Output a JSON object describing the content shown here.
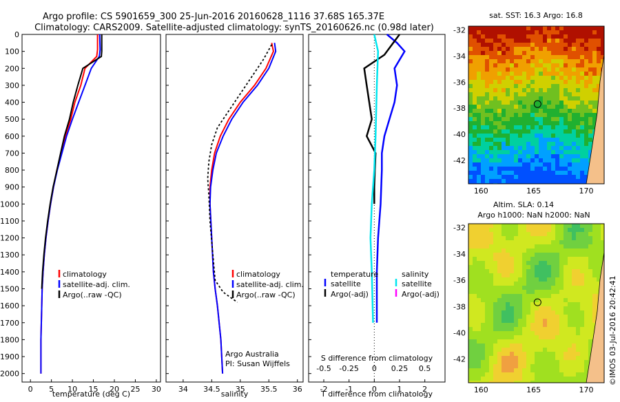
{
  "header": {
    "line1": "Argo profile: CS 5901659_300 25-Jun-2016 20160628_1116 37.68S 165.37E",
    "line2": "Climatology: CARS2009. Satellite-adjusted climatology: synTS_20160626.nc (0.98d later)"
  },
  "credit": "©IMOS 03-Jul-2016 20:42:41",
  "colors": {
    "climatology": "#ff0000",
    "satellite": "#0000ff",
    "argo": "#000000",
    "sal_satellite": "#00e5ee",
    "sal_argo": "#ff00ff"
  },
  "chart_data": [
    {
      "type": "line",
      "name": "temperature-panel",
      "xlabel": "temperature (deg C)",
      "xlim": [
        -2,
        31
      ],
      "ylim": [
        2050,
        0
      ],
      "xticks": [
        0,
        5,
        10,
        15,
        20,
        25,
        30
      ],
      "yticks": [
        0,
        100,
        200,
        300,
        400,
        500,
        600,
        700,
        800,
        900,
        1000,
        1100,
        1200,
        1300,
        1400,
        1500,
        1600,
        1700,
        1800,
        1900,
        2000
      ],
      "legend": [
        "climatology",
        "satellite-adj. clim.",
        "Argo(..raw -QC)"
      ],
      "legend_position": "lower-right",
      "series": [
        {
          "name": "climatology",
          "color": "#ff0000",
          "x": [
            16.0,
            16.0,
            15.8,
            13.0,
            12.0,
            10.6,
            9.6,
            8.3,
            7.3,
            6.3,
            5.5,
            4.8,
            4.2,
            3.7,
            3.3,
            3.0,
            2.8,
            2.7,
            2.6,
            2.5,
            2.5
          ],
          "y": [
            0,
            90,
            130,
            200,
            300,
            400,
            500,
            600,
            700,
            800,
            900,
            1000,
            1100,
            1200,
            1300,
            1400,
            1500,
            1600,
            1700,
            1800,
            2000
          ]
        },
        {
          "name": "satellite-adj. clim.",
          "color": "#0000ff",
          "x": [
            16.5,
            16.6,
            16.4,
            14.5,
            13.0,
            11.5,
            10.0,
            8.6,
            7.5,
            6.4,
            5.5,
            4.8,
            4.2,
            3.7,
            3.3,
            3.0,
            2.8,
            2.7,
            2.6,
            2.5,
            2.5
          ],
          "y": [
            0,
            90,
            130,
            200,
            300,
            400,
            500,
            600,
            700,
            800,
            900,
            1000,
            1100,
            1200,
            1300,
            1400,
            1500,
            1600,
            1700,
            1800,
            2000
          ]
        },
        {
          "name": "Argo(..raw -QC)",
          "color": "#000000",
          "x": [
            17.0,
            17.0,
            16.9,
            12.5,
            11.3,
            10.2,
            9.3,
            8.1,
            7.2,
            6.3,
            5.4,
            4.7,
            4.1,
            3.6,
            3.2,
            2.9,
            2.7
          ],
          "y": [
            0,
            100,
            130,
            200,
            300,
            400,
            500,
            600,
            700,
            800,
            900,
            1000,
            1100,
            1200,
            1300,
            1400,
            1500
          ]
        }
      ]
    },
    {
      "type": "line",
      "name": "salinity-panel",
      "xlabel": "salinity",
      "xlim": [
        33.7,
        36.1
      ],
      "ylim": [
        2050,
        0
      ],
      "xticks": [
        34,
        34.5,
        35,
        35.5,
        36
      ],
      "legend": [
        "climatology",
        "satellite-adj. clim.",
        "Argo(..raw -QC)"
      ],
      "legend_position": "lower-right",
      "annotation": [
        "Argo Australia",
        "PI: Susan Wijffels"
      ],
      "series": [
        {
          "name": "climatology",
          "color": "#ff0000",
          "x": [
            35.55,
            35.58,
            35.45,
            35.25,
            35.0,
            34.8,
            34.65,
            34.55,
            34.5,
            34.47,
            34.47,
            34.5,
            34.53,
            34.56,
            34.6,
            34.63,
            34.66,
            34.69
          ],
          "y": [
            50,
            100,
            200,
            300,
            400,
            500,
            600,
            700,
            800,
            900,
            1000,
            1200,
            1400,
            1500,
            1600,
            1700,
            1800,
            2000
          ]
        },
        {
          "name": "satellite-adj. clim.",
          "color": "#0000ff",
          "x": [
            35.6,
            35.62,
            35.5,
            35.3,
            35.05,
            34.85,
            34.7,
            34.58,
            34.52,
            34.48,
            34.47,
            34.5,
            34.53,
            34.56,
            34.6,
            34.63,
            34.66,
            34.69
          ],
          "y": [
            50,
            100,
            200,
            300,
            400,
            500,
            600,
            700,
            800,
            900,
            1000,
            1200,
            1400,
            1500,
            1600,
            1700,
            1800,
            2000
          ]
        },
        {
          "name": "Argo(..raw -QC)",
          "color": "#000000",
          "x": [
            35.55,
            35.4,
            35.1,
            35.0,
            34.8,
            34.6,
            34.5,
            34.45,
            34.43,
            34.45,
            34.47,
            34.52,
            34.56,
            34.7,
            34.95
          ],
          "y": [
            60,
            150,
            300,
            350,
            450,
            550,
            650,
            750,
            850,
            950,
            1100,
            1300,
            1450,
            1520,
            1580
          ]
        }
      ]
    },
    {
      "type": "line",
      "name": "difference-panel",
      "xlabel": "T difference from climatology",
      "xlabel_top": "S difference from climatology",
      "xlim": [
        -2.6,
        2.8
      ],
      "ylim": [
        2050,
        0
      ],
      "xticks_bottom": [
        -2,
        -1,
        0,
        1,
        2
      ],
      "xticks_top": [
        -0.5,
        -0.25,
        0,
        0.25,
        0.5
      ],
      "legend_temperature": [
        "temperature",
        "satellite",
        "Argo(-adj)"
      ],
      "legend_salinity": [
        "salinity",
        "satellite",
        "Argo(-adj)"
      ],
      "legend_position": "lower",
      "series": [
        {
          "name": "temperature satellite",
          "color": "#0000ff",
          "x": [
            0.5,
            0.9,
            1.2,
            0.8,
            0.9,
            0.8,
            0.6,
            0.4,
            0.3,
            0.3,
            0.25,
            0.15,
            0.1,
            0.1,
            0.1
          ],
          "y": [
            0,
            50,
            100,
            200,
            300,
            400,
            500,
            600,
            700,
            800,
            1000,
            1200,
            1400,
            1600,
            1700
          ]
        },
        {
          "name": "temperature Argo(-adj)",
          "color": "#000000",
          "x": [
            1.0,
            0.7,
            0.4,
            -0.4,
            -0.3,
            -0.2,
            -0.1,
            -0.3,
            0.05,
            0.02,
            0.0,
            0.0
          ],
          "y": [
            0,
            60,
            120,
            200,
            300,
            400,
            500,
            600,
            700,
            800,
            900,
            1000
          ]
        },
        {
          "name": "salinity satellite",
          "color": "#00e5ee",
          "x": [
            0.0,
            0.15,
            0.1,
            0.05,
            0.0,
            -0.1,
            -0.15,
            -0.1,
            -0.05
          ],
          "y": [
            0,
            100,
            300,
            600,
            800,
            1000,
            1200,
            1400,
            1700
          ]
        }
      ]
    },
    {
      "type": "heatmap",
      "name": "sst-map",
      "title": "sat. SST: 16.3 Argo: 16.8",
      "xlim": [
        158.8,
        171.7
      ],
      "ylim": [
        -43.8,
        -31.7
      ],
      "xticks": [
        160,
        165,
        170
      ],
      "yticks": [
        -32,
        -34,
        -36,
        -38,
        -40,
        -42
      ],
      "marker": {
        "lon": 165.37,
        "lat": -37.68
      }
    },
    {
      "type": "heatmap",
      "name": "sla-map",
      "title": "Altim. SLA: 0.14",
      "subtitle": "Argo h1000: NaN h2000: NaN",
      "xlim": [
        158.8,
        171.7
      ],
      "ylim": [
        -43.8,
        -31.7
      ],
      "xticks": [
        160,
        165,
        170
      ],
      "yticks": [
        -32,
        -34,
        -36,
        -38,
        -40,
        -42
      ],
      "marker": {
        "lon": 165.37,
        "lat": -37.68
      }
    }
  ]
}
